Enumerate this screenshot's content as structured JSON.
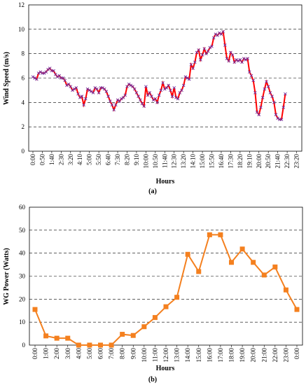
{
  "chart_data": [
    {
      "type": "line",
      "caption": "(a)",
      "xlabel": "Hours",
      "ylabel": "Wind Speed (m/s)",
      "ylim": [
        0,
        12
      ],
      "yticks": [
        0,
        2,
        4,
        6,
        8,
        10,
        12
      ],
      "grid": "horizontal dashed",
      "x_tick_labels": [
        "0:00",
        "0:50",
        "1:40",
        "2:30",
        "3:20",
        "4:10",
        "5:00",
        "5:50",
        "6:40",
        "7:30",
        "8:20",
        "9:10",
        "10:00",
        "10:50",
        "11:40",
        "12:30",
        "13:20",
        "14:10",
        "15:00",
        "15:50",
        "16:40",
        "17:30",
        "18:20",
        "19:10",
        "20:00",
        "20:50",
        "21:40",
        "22:30",
        "23:20"
      ],
      "x_interval_minutes": 10,
      "line_color": "#ff0000",
      "marker_color": "#7030a0",
      "values": [
        6.1,
        6.0,
        5.9,
        6.4,
        6.5,
        6.4,
        6.4,
        6.5,
        6.7,
        6.8,
        6.6,
        6.6,
        6.3,
        6.1,
        6.2,
        6.0,
        6.0,
        5.8,
        5.4,
        5.5,
        5.3,
        5.0,
        5.1,
        5.2,
        4.7,
        4.4,
        4.5,
        3.8,
        4.3,
        5.1,
        5.0,
        4.9,
        4.8,
        5.2,
        5.1,
        4.8,
        5.2,
        5.2,
        5.1,
        4.9,
        4.5,
        4.1,
        3.8,
        3.4,
        3.8,
        4.2,
        4.1,
        4.3,
        4.4,
        4.6,
        5.3,
        5.5,
        5.4,
        5.3,
        5.1,
        4.8,
        4.5,
        4.2,
        3.9,
        3.7,
        5.3,
        4.6,
        4.8,
        4.5,
        4.2,
        4.3,
        4.0,
        4.6,
        5.0,
        5.6,
        5.1,
        5.2,
        5.4,
        5.0,
        4.5,
        5.2,
        4.4,
        4.3,
        4.8,
        5.0,
        5.4,
        6.1,
        6.0,
        5.9,
        7.1,
        6.8,
        7.3,
        8.1,
        8.3,
        7.5,
        7.9,
        8.4,
        8.0,
        8.2,
        8.5,
        8.6,
        9.3,
        9.6,
        9.5,
        9.7,
        9.6,
        9.8,
        8.7,
        7.6,
        7.4,
        8.1,
        7.9,
        7.3,
        7.5,
        7.4,
        7.5,
        7.3,
        7.6,
        7.5,
        7.6,
        6.5,
        6.2,
        5.8,
        4.8,
        3.2,
        3.0,
        3.6,
        4.4,
        5.1,
        5.7,
        5.3,
        4.8,
        4.5,
        4.0,
        3.0,
        2.7,
        2.6,
        2.6,
        3.6,
        4.7
      ]
    },
    {
      "type": "line",
      "caption": "(b)",
      "xlabel": "Hours",
      "ylabel": "WG Power (Watts)",
      "ylim": [
        0,
        60
      ],
      "yticks": [
        0,
        10,
        20,
        30,
        40,
        50,
        60
      ],
      "grid": "horizontal dashed",
      "categories": [
        "0:00",
        "1:00",
        "2:00",
        "3:00",
        "4:00",
        "5:00",
        "6:00",
        "7:00",
        "8:00",
        "9:00",
        "10:00",
        "11:00",
        "12:00",
        "13:00",
        "14:00",
        "15:00",
        "16:00",
        "17:00",
        "18:00",
        "19:00",
        "20:00",
        "21:00",
        "22:00",
        "23:00",
        "0:00"
      ],
      "line_color": "#f4801f",
      "values": [
        15.5,
        4,
        3,
        3,
        0,
        0,
        0,
        0,
        4.7,
        4.2,
        8,
        12,
        16.7,
        20.8,
        39.5,
        32,
        48,
        48,
        36,
        41.8,
        36,
        30.5,
        34,
        24,
        15.5
      ]
    }
  ]
}
